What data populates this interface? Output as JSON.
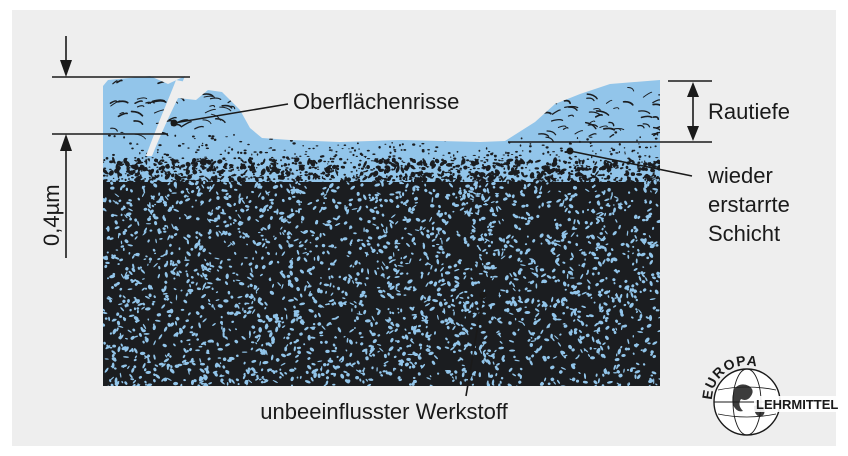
{
  "labels": {
    "surface_cracks": "Oberflächenrisse",
    "roughness_depth": "Rautiefe",
    "recast_layer_line1": "wieder",
    "recast_layer_line2": "erstarrte",
    "recast_layer_line3": "Schicht",
    "base_material": "unbeeinflusster Werkstoff",
    "thickness": "0,4µm"
  },
  "logo": {
    "line1": "EUROPA",
    "line2": "LEHRMITTEL"
  },
  "colors": {
    "panel": "#eeeeee",
    "recast_blue": "#92c5ea",
    "grain_dark": "#1b1d20",
    "ink": "#1a1a1a"
  }
}
